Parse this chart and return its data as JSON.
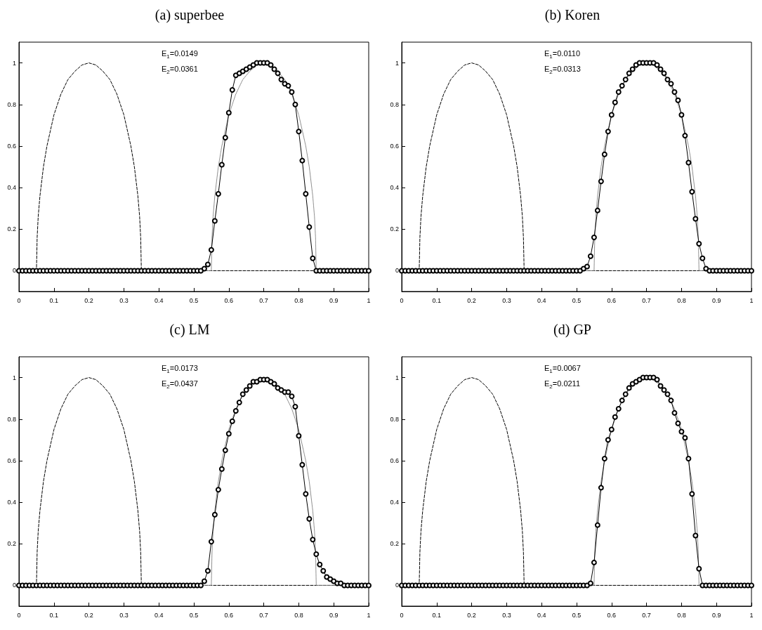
{
  "chart_data": [
    {
      "type": "line",
      "title": "(a) superbee",
      "annotations": [
        "E$_{1}$=0.0149",
        "E$_{2}$=0.0361"
      ],
      "xlim": [
        0,
        1
      ],
      "xticks": [
        0,
        0.1,
        0.2,
        0.3,
        0.4,
        0.5,
        0.6,
        0.7,
        0.8,
        0.9,
        1
      ],
      "ylim": [
        -0.1,
        1.1
      ],
      "yticks": [
        0,
        0.2,
        0.4,
        0.6,
        0.8,
        1
      ],
      "x": [
        0,
        0.01,
        0.02,
        0.03,
        0.04,
        0.05,
        0.06,
        0.07,
        0.08,
        0.09,
        0.1,
        0.11,
        0.12,
        0.13,
        0.14,
        0.15,
        0.16,
        0.17,
        0.18,
        0.19,
        0.2,
        0.21,
        0.22,
        0.23,
        0.24,
        0.25,
        0.26,
        0.27,
        0.28,
        0.29,
        0.3,
        0.31,
        0.32,
        0.33,
        0.34,
        0.35,
        0.36,
        0.37,
        0.38,
        0.39,
        0.4,
        0.41,
        0.42,
        0.43,
        0.44,
        0.45,
        0.46,
        0.47,
        0.48,
        0.49,
        0.5,
        0.51,
        0.52,
        0.53,
        0.54,
        0.55,
        0.56,
        0.57,
        0.58,
        0.59,
        0.6,
        0.61,
        0.62,
        0.63,
        0.64,
        0.65,
        0.66,
        0.67,
        0.68,
        0.69,
        0.7,
        0.71,
        0.72,
        0.73,
        0.74,
        0.75,
        0.76,
        0.77,
        0.78,
        0.79,
        0.8,
        0.81,
        0.82,
        0.83,
        0.84,
        0.85,
        0.86,
        0.87,
        0.88,
        0.89,
        0.9,
        0.91,
        0.92,
        0.93,
        0.94,
        0.95,
        0.96,
        0.97,
        0.98,
        0.99,
        1
      ],
      "series": [
        {
          "color": "#000000",
          "line_style": "dashed",
          "marker": "none",
          "x": [
            0,
            0.05,
            0.052,
            0.055,
            0.06,
            0.07,
            0.08,
            0.1,
            0.12,
            0.14,
            0.16,
            0.18,
            0.2,
            0.22,
            0.24,
            0.26,
            0.28,
            0.3,
            0.32,
            0.33,
            0.34,
            0.345,
            0.348,
            0.35,
            1
          ],
          "values": [
            0,
            0,
            0.16,
            0.26,
            0.36,
            0.5,
            0.6,
            0.75,
            0.85,
            0.92,
            0.96,
            0.99,
            1,
            0.99,
            0.96,
            0.92,
            0.85,
            0.75,
            0.6,
            0.5,
            0.36,
            0.26,
            0.16,
            0,
            0
          ]
        },
        {
          "color": "#808080",
          "line_style": "dotted",
          "marker": "none",
          "x": [
            0,
            0.55,
            0.552,
            0.555,
            0.56,
            0.57,
            0.58,
            0.6,
            0.62,
            0.64,
            0.66,
            0.68,
            0.7,
            0.72,
            0.74,
            0.76,
            0.78,
            0.8,
            0.82,
            0.83,
            0.84,
            0.845,
            0.848,
            0.85,
            1
          ],
          "values": [
            0,
            0,
            0.16,
            0.26,
            0.36,
            0.5,
            0.6,
            0.75,
            0.85,
            0.92,
            0.96,
            0.99,
            1,
            0.99,
            0.96,
            0.92,
            0.85,
            0.75,
            0.6,
            0.5,
            0.36,
            0.26,
            0.16,
            0,
            0
          ]
        },
        {
          "color": "#000000",
          "line_style": "solid",
          "marker": "circle",
          "values": [
            0,
            0,
            0,
            0,
            0,
            0,
            0,
            0,
            0,
            0,
            0,
            0,
            0,
            0,
            0,
            0,
            0,
            0,
            0,
            0,
            0,
            0,
            0,
            0,
            0,
            0,
            0,
            0,
            0,
            0,
            0,
            0,
            0,
            0,
            0,
            0,
            0,
            0,
            0,
            0,
            0,
            0,
            0,
            0,
            0,
            0,
            0,
            0,
            0,
            0,
            0,
            0,
            0,
            0.01,
            0.03,
            0.1,
            0.24,
            0.37,
            0.51,
            0.64,
            0.76,
            0.87,
            0.94,
            0.95,
            0.96,
            0.97,
            0.98,
            0.99,
            1,
            1,
            1,
            1,
            0.99,
            0.97,
            0.95,
            0.92,
            0.9,
            0.89,
            0.86,
            0.8,
            0.67,
            0.53,
            0.37,
            0.21,
            0.06,
            0,
            0,
            0,
            0,
            0,
            0,
            0,
            0,
            0,
            0,
            0,
            0,
            0,
            0,
            0,
            0
          ]
        }
      ]
    },
    {
      "type": "line",
      "title": "(b) Koren",
      "annotations": [
        "E$_{1}$=0.0110",
        "E$_{2}$=0.0313"
      ],
      "xlim": [
        0,
        1
      ],
      "xticks": [
        0,
        0.1,
        0.2,
        0.3,
        0.4,
        0.5,
        0.6,
        0.7,
        0.8,
        0.9,
        1
      ],
      "ylim": [
        -0.1,
        1.1
      ],
      "yticks": [
        0,
        0.2,
        0.4,
        0.6,
        0.8,
        1
      ],
      "x": [
        0,
        0.01,
        0.02,
        0.03,
        0.04,
        0.05,
        0.06,
        0.07,
        0.08,
        0.09,
        0.1,
        0.11,
        0.12,
        0.13,
        0.14,
        0.15,
        0.16,
        0.17,
        0.18,
        0.19,
        0.2,
        0.21,
        0.22,
        0.23,
        0.24,
        0.25,
        0.26,
        0.27,
        0.28,
        0.29,
        0.3,
        0.31,
        0.32,
        0.33,
        0.34,
        0.35,
        0.36,
        0.37,
        0.38,
        0.39,
        0.4,
        0.41,
        0.42,
        0.43,
        0.44,
        0.45,
        0.46,
        0.47,
        0.48,
        0.49,
        0.5,
        0.51,
        0.52,
        0.53,
        0.54,
        0.55,
        0.56,
        0.57,
        0.58,
        0.59,
        0.6,
        0.61,
        0.62,
        0.63,
        0.64,
        0.65,
        0.66,
        0.67,
        0.68,
        0.69,
        0.7,
        0.71,
        0.72,
        0.73,
        0.74,
        0.75,
        0.76,
        0.77,
        0.78,
        0.79,
        0.8,
        0.81,
        0.82,
        0.83,
        0.84,
        0.85,
        0.86,
        0.87,
        0.88,
        0.89,
        0.9,
        0.91,
        0.92,
        0.93,
        0.94,
        0.95,
        0.96,
        0.97,
        0.98,
        0.99,
        1
      ],
      "series": [
        {
          "color": "#000000",
          "line_style": "dashed",
          "marker": "none",
          "x": [
            0,
            0.05,
            0.052,
            0.055,
            0.06,
            0.07,
            0.08,
            0.1,
            0.12,
            0.14,
            0.16,
            0.18,
            0.2,
            0.22,
            0.24,
            0.26,
            0.28,
            0.3,
            0.32,
            0.33,
            0.34,
            0.345,
            0.348,
            0.35,
            1
          ],
          "values": [
            0,
            0,
            0.16,
            0.26,
            0.36,
            0.5,
            0.6,
            0.75,
            0.85,
            0.92,
            0.96,
            0.99,
            1,
            0.99,
            0.96,
            0.92,
            0.85,
            0.75,
            0.6,
            0.5,
            0.36,
            0.26,
            0.16,
            0,
            0
          ]
        },
        {
          "color": "#808080",
          "line_style": "dotted",
          "marker": "none",
          "x": [
            0,
            0.55,
            0.552,
            0.555,
            0.56,
            0.57,
            0.58,
            0.6,
            0.62,
            0.64,
            0.66,
            0.68,
            0.7,
            0.72,
            0.74,
            0.76,
            0.78,
            0.8,
            0.82,
            0.83,
            0.84,
            0.845,
            0.848,
            0.85,
            1
          ],
          "values": [
            0,
            0,
            0.16,
            0.26,
            0.36,
            0.5,
            0.6,
            0.75,
            0.85,
            0.92,
            0.96,
            0.99,
            1,
            0.99,
            0.96,
            0.92,
            0.85,
            0.75,
            0.6,
            0.5,
            0.36,
            0.26,
            0.16,
            0,
            0
          ]
        },
        {
          "color": "#000000",
          "line_style": "solid",
          "marker": "circle",
          "values": [
            0,
            0,
            0,
            0,
            0,
            0,
            0,
            0,
            0,
            0,
            0,
            0,
            0,
            0,
            0,
            0,
            0,
            0,
            0,
            0,
            0,
            0,
            0,
            0,
            0,
            0,
            0,
            0,
            0,
            0,
            0,
            0,
            0,
            0,
            0,
            0,
            0,
            0,
            0,
            0,
            0,
            0,
            0,
            0,
            0,
            0,
            0,
            0,
            0,
            0,
            0,
            0,
            0.01,
            0.02,
            0.07,
            0.16,
            0.29,
            0.43,
            0.56,
            0.67,
            0.75,
            0.81,
            0.86,
            0.89,
            0.92,
            0.95,
            0.97,
            0.99,
            1,
            1,
            1,
            1,
            1,
            0.99,
            0.97,
            0.95,
            0.92,
            0.9,
            0.86,
            0.82,
            0.75,
            0.65,
            0.52,
            0.38,
            0.25,
            0.13,
            0.06,
            0.01,
            0,
            0,
            0,
            0,
            0,
            0,
            0,
            0,
            0,
            0,
            0,
            0,
            0
          ]
        }
      ]
    },
    {
      "type": "line",
      "title": "(c) LM",
      "annotations": [
        "E$_{1}$=0.0173",
        "E$_{2}$=0.0437"
      ],
      "xlim": [
        0,
        1
      ],
      "xticks": [
        0,
        0.1,
        0.2,
        0.3,
        0.4,
        0.5,
        0.6,
        0.7,
        0.8,
        0.9,
        1
      ],
      "ylim": [
        -0.1,
        1.1
      ],
      "yticks": [
        0,
        0.2,
        0.4,
        0.6,
        0.8,
        1
      ],
      "x": [
        0,
        0.01,
        0.02,
        0.03,
        0.04,
        0.05,
        0.06,
        0.07,
        0.08,
        0.09,
        0.1,
        0.11,
        0.12,
        0.13,
        0.14,
        0.15,
        0.16,
        0.17,
        0.18,
        0.19,
        0.2,
        0.21,
        0.22,
        0.23,
        0.24,
        0.25,
        0.26,
        0.27,
        0.28,
        0.29,
        0.3,
        0.31,
        0.32,
        0.33,
        0.34,
        0.35,
        0.36,
        0.37,
        0.38,
        0.39,
        0.4,
        0.41,
        0.42,
        0.43,
        0.44,
        0.45,
        0.46,
        0.47,
        0.48,
        0.49,
        0.5,
        0.51,
        0.52,
        0.53,
        0.54,
        0.55,
        0.56,
        0.57,
        0.58,
        0.59,
        0.6,
        0.61,
        0.62,
        0.63,
        0.64,
        0.65,
        0.66,
        0.67,
        0.68,
        0.69,
        0.7,
        0.71,
        0.72,
        0.73,
        0.74,
        0.75,
        0.76,
        0.77,
        0.78,
        0.79,
        0.8,
        0.81,
        0.82,
        0.83,
        0.84,
        0.85,
        0.86,
        0.87,
        0.88,
        0.89,
        0.9,
        0.91,
        0.92,
        0.93,
        0.94,
        0.95,
        0.96,
        0.97,
        0.98,
        0.99,
        1
      ],
      "series": [
        {
          "color": "#000000",
          "line_style": "dashed",
          "marker": "none",
          "x": [
            0,
            0.05,
            0.052,
            0.055,
            0.06,
            0.07,
            0.08,
            0.1,
            0.12,
            0.14,
            0.16,
            0.18,
            0.2,
            0.22,
            0.24,
            0.26,
            0.28,
            0.3,
            0.32,
            0.33,
            0.34,
            0.345,
            0.348,
            0.35,
            1
          ],
          "values": [
            0,
            0,
            0.16,
            0.26,
            0.36,
            0.5,
            0.6,
            0.75,
            0.85,
            0.92,
            0.96,
            0.99,
            1,
            0.99,
            0.96,
            0.92,
            0.85,
            0.75,
            0.6,
            0.5,
            0.36,
            0.26,
            0.16,
            0,
            0
          ]
        },
        {
          "color": "#808080",
          "line_style": "dotted",
          "marker": "none",
          "x": [
            0,
            0.55,
            0.552,
            0.555,
            0.56,
            0.57,
            0.58,
            0.6,
            0.62,
            0.64,
            0.66,
            0.68,
            0.7,
            0.72,
            0.74,
            0.76,
            0.78,
            0.8,
            0.82,
            0.83,
            0.84,
            0.845,
            0.848,
            0.85,
            1
          ],
          "values": [
            0,
            0,
            0.16,
            0.26,
            0.36,
            0.5,
            0.6,
            0.75,
            0.85,
            0.92,
            0.96,
            0.99,
            1,
            0.99,
            0.96,
            0.92,
            0.85,
            0.75,
            0.6,
            0.5,
            0.36,
            0.26,
            0.16,
            0,
            0
          ]
        },
        {
          "color": "#000000",
          "line_style": "solid",
          "marker": "circle",
          "values": [
            0,
            0,
            0,
            0,
            0,
            0,
            0,
            0,
            0,
            0,
            0,
            0,
            0,
            0,
            0,
            0,
            0,
            0,
            0,
            0,
            0,
            0,
            0,
            0,
            0,
            0,
            0,
            0,
            0,
            0,
            0,
            0,
            0,
            0,
            0,
            0,
            0,
            0,
            0,
            0,
            0,
            0,
            0,
            0,
            0,
            0,
            0,
            0,
            0,
            0,
            0,
            0,
            0,
            0.02,
            0.07,
            0.21,
            0.34,
            0.46,
            0.56,
            0.65,
            0.73,
            0.79,
            0.84,
            0.88,
            0.92,
            0.94,
            0.96,
            0.98,
            0.98,
            0.99,
            0.99,
            0.99,
            0.98,
            0.97,
            0.95,
            0.94,
            0.93,
            0.93,
            0.91,
            0.86,
            0.72,
            0.58,
            0.44,
            0.32,
            0.22,
            0.15,
            0.1,
            0.07,
            0.04,
            0.03,
            0.02,
            0.01,
            0.01,
            0,
            0,
            0,
            0,
            0,
            0,
            0,
            0
          ]
        }
      ]
    },
    {
      "type": "line",
      "title": "(d) GP",
      "annotations": [
        "E$_{1}$=0.0067",
        "E$_{2}$=0.0211"
      ],
      "xlim": [
        0,
        1
      ],
      "xticks": [
        0,
        0.1,
        0.2,
        0.3,
        0.4,
        0.5,
        0.6,
        0.7,
        0.8,
        0.9,
        1
      ],
      "ylim": [
        -0.1,
        1.1
      ],
      "yticks": [
        0,
        0.2,
        0.4,
        0.6,
        0.8,
        1
      ],
      "x": [
        0,
        0.01,
        0.02,
        0.03,
        0.04,
        0.05,
        0.06,
        0.07,
        0.08,
        0.09,
        0.1,
        0.11,
        0.12,
        0.13,
        0.14,
        0.15,
        0.16,
        0.17,
        0.18,
        0.19,
        0.2,
        0.21,
        0.22,
        0.23,
        0.24,
        0.25,
        0.26,
        0.27,
        0.28,
        0.29,
        0.3,
        0.31,
        0.32,
        0.33,
        0.34,
        0.35,
        0.36,
        0.37,
        0.38,
        0.39,
        0.4,
        0.41,
        0.42,
        0.43,
        0.44,
        0.45,
        0.46,
        0.47,
        0.48,
        0.49,
        0.5,
        0.51,
        0.52,
        0.53,
        0.54,
        0.55,
        0.56,
        0.57,
        0.58,
        0.59,
        0.6,
        0.61,
        0.62,
        0.63,
        0.64,
        0.65,
        0.66,
        0.67,
        0.68,
        0.69,
        0.7,
        0.71,
        0.72,
        0.73,
        0.74,
        0.75,
        0.76,
        0.77,
        0.78,
        0.79,
        0.8,
        0.81,
        0.82,
        0.83,
        0.84,
        0.85,
        0.86,
        0.87,
        0.88,
        0.89,
        0.9,
        0.91,
        0.92,
        0.93,
        0.94,
        0.95,
        0.96,
        0.97,
        0.98,
        0.99,
        1
      ],
      "series": [
        {
          "color": "#000000",
          "line_style": "dashed",
          "marker": "none",
          "x": [
            0,
            0.05,
            0.052,
            0.055,
            0.06,
            0.07,
            0.08,
            0.1,
            0.12,
            0.14,
            0.16,
            0.18,
            0.2,
            0.22,
            0.24,
            0.26,
            0.28,
            0.3,
            0.32,
            0.33,
            0.34,
            0.345,
            0.348,
            0.35,
            1
          ],
          "values": [
            0,
            0,
            0.16,
            0.26,
            0.36,
            0.5,
            0.6,
            0.75,
            0.85,
            0.92,
            0.96,
            0.99,
            1,
            0.99,
            0.96,
            0.92,
            0.85,
            0.75,
            0.6,
            0.5,
            0.36,
            0.26,
            0.16,
            0,
            0
          ]
        },
        {
          "color": "#808080",
          "line_style": "dotted",
          "marker": "none",
          "x": [
            0,
            0.55,
            0.552,
            0.555,
            0.56,
            0.57,
            0.58,
            0.6,
            0.62,
            0.64,
            0.66,
            0.68,
            0.7,
            0.72,
            0.74,
            0.76,
            0.78,
            0.8,
            0.82,
            0.83,
            0.84,
            0.845,
            0.848,
            0.85,
            1
          ],
          "values": [
            0,
            0,
            0.16,
            0.26,
            0.36,
            0.5,
            0.6,
            0.75,
            0.85,
            0.92,
            0.96,
            0.99,
            1,
            0.99,
            0.96,
            0.92,
            0.85,
            0.75,
            0.6,
            0.5,
            0.36,
            0.26,
            0.16,
            0,
            0
          ]
        },
        {
          "color": "#000000",
          "line_style": "solid",
          "marker": "circle",
          "values": [
            0,
            0,
            0,
            0,
            0,
            0,
            0,
            0,
            0,
            0,
            0,
            0,
            0,
            0,
            0,
            0,
            0,
            0,
            0,
            0,
            0,
            0,
            0,
            0,
            0,
            0,
            0,
            0,
            0,
            0,
            0,
            0,
            0,
            0,
            0,
            0,
            0,
            0,
            0,
            0,
            0,
            0,
            0,
            0,
            0,
            0,
            0,
            0,
            0,
            0,
            0,
            0,
            0,
            0,
            0.01,
            0.11,
            0.29,
            0.47,
            0.61,
            0.7,
            0.75,
            0.81,
            0.85,
            0.89,
            0.92,
            0.95,
            0.97,
            0.98,
            0.99,
            1,
            1,
            1,
            1,
            0.99,
            0.96,
            0.94,
            0.92,
            0.89,
            0.83,
            0.78,
            0.74,
            0.71,
            0.61,
            0.44,
            0.24,
            0.08,
            0,
            0,
            0,
            0,
            0,
            0,
            0,
            0,
            0,
            0,
            0,
            0,
            0,
            0,
            0
          ]
        }
      ]
    }
  ]
}
